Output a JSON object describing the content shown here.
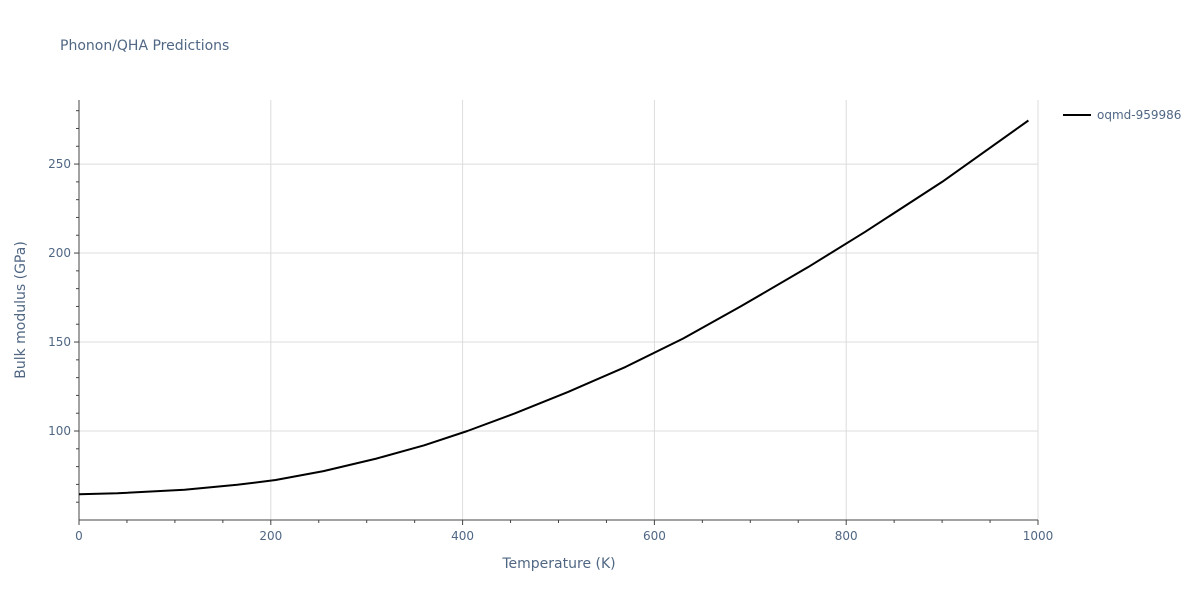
{
  "chart_data": {
    "type": "line",
    "title": "Phonon/QHA Predictions",
    "xlabel": "Temperature (K)",
    "ylabel": "Bulk modulus (GPa)",
    "xlim": [
      0,
      1000
    ],
    "ylim": [
      50,
      286
    ],
    "x_ticks": [
      0,
      200,
      400,
      600,
      800,
      1000
    ],
    "y_ticks": [
      100,
      150,
      200,
      250
    ],
    "grid": true,
    "legend_position": "top-right",
    "series": [
      {
        "name": "oqmd-959986",
        "color": "#000000",
        "x": [
          0,
          40,
          110,
          165,
          205,
          255,
          310,
          360,
          405,
          455,
          510,
          570,
          630,
          690,
          760,
          820,
          900,
          990
        ],
        "y": [
          64.5,
          65,
          67,
          69.8,
          72.5,
          77.5,
          84.5,
          92,
          100,
          110,
          122,
          136,
          152,
          170,
          192,
          212,
          240,
          274.5
        ]
      }
    ]
  }
}
